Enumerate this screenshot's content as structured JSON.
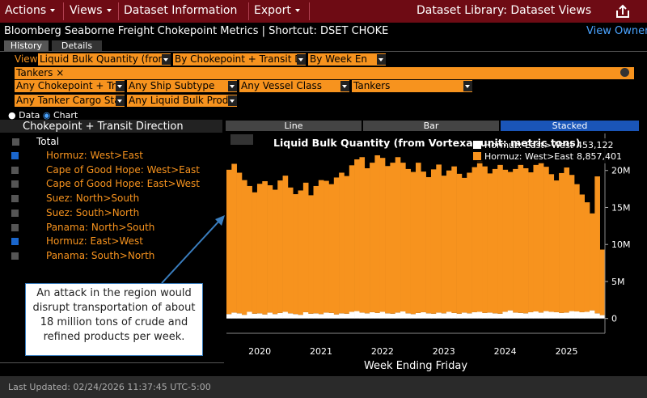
{
  "menu_bar": {
    "items": [
      "Actions",
      "Views",
      "Dataset Information",
      "Export"
    ],
    "right": "Dataset Library: Dataset Views"
  },
  "header": {
    "title": "Bloomberg Seaborne Freight Chokepoint Metrics | Shortcut: DSET CHOKE",
    "link": "View Owner"
  },
  "tabs": [
    "History",
    "Details"
  ],
  "filters": {
    "view_label": "View",
    "view_fields": [
      "Liquid Bulk Quantity (from",
      "By Chokepoint + Transit Di",
      "By Week En"
    ],
    "tag": "Tankers",
    "row2": [
      "Any Chokepoint + Tra",
      "Any Ship Subtype",
      "Any Vessel Class",
      "Tankers"
    ],
    "row3": [
      "Any Tanker Cargo Sta",
      "Any Liquid Bulk Produ"
    ]
  },
  "mode": [
    "Data",
    "Chart"
  ],
  "tree": {
    "header": "Chokepoint + Transit Direction",
    "root": "Total",
    "items": [
      {
        "label": "Hormuz: West>East",
        "checked": true
      },
      {
        "label": "Cape of Good Hope: West>East",
        "checked": false
      },
      {
        "label": "Cape of Good Hope: East>West",
        "checked": false
      },
      {
        "label": "Suez: North>South",
        "checked": false
      },
      {
        "label": "Suez: South>North",
        "checked": false
      },
      {
        "label": "Panama: North>South",
        "checked": false
      },
      {
        "label": "Hormuz: East>West",
        "checked": true
      },
      {
        "label": "Panama: South>North",
        "checked": false
      }
    ]
  },
  "annotation": [
    "An attack in the region would",
    "disrupt transportation of about",
    "18 million tons of crude and",
    "refined products per week."
  ],
  "chart_tabs": [
    "Line",
    "Bar",
    "Stacked"
  ],
  "chart_data": {
    "type": "bar",
    "stacked": true,
    "title": "Liquid Bulk Quantity (from Vortexa, unit: metric tons)",
    "x_label": "Week Ending Friday",
    "categories": [
      null,
      null,
      null,
      null,
      null,
      null,
      "2020",
      null,
      null,
      null,
      null,
      null,
      null,
      null,
      null,
      null,
      null,
      null,
      "2021",
      null,
      null,
      null,
      null,
      null,
      null,
      null,
      null,
      null,
      null,
      null,
      "2022",
      null,
      null,
      null,
      null,
      null,
      null,
      null,
      null,
      null,
      null,
      null,
      "2023",
      null,
      null,
      null,
      null,
      null,
      null,
      null,
      null,
      null,
      null,
      null,
      "2024",
      null,
      null,
      null,
      null,
      null,
      null,
      null,
      null,
      null,
      null,
      null,
      "2025",
      null,
      null,
      null,
      null,
      null,
      null,
      null
    ],
    "series": [
      {
        "name": "Hormuz: East>West",
        "color": "#ffffff",
        "legend_value": "453,122",
        "values": [
          600000,
          800000,
          700000,
          500000,
          900000,
          650000,
          700000,
          550000,
          800000,
          600000,
          750000,
          900000,
          700000,
          600000,
          500000,
          850000,
          650000,
          700000,
          600000,
          800000,
          750000,
          550000,
          700000,
          650000,
          900000,
          1000000,
          800000,
          700000,
          850000,
          750000,
          900000,
          700000,
          650000,
          800000,
          950000,
          700000,
          600000,
          750000,
          850000,
          700000,
          650000,
          800000,
          700000,
          900000,
          750000,
          650000,
          800000,
          700000,
          850000,
          900000,
          750000,
          800000,
          700000,
          650000,
          900000,
          1100000,
          800000,
          750000,
          700000,
          850000,
          950000,
          800000,
          1000000,
          900000,
          850000,
          750000,
          800000,
          1000000,
          950000,
          850000,
          900000,
          1100000,
          700000,
          453122
        ]
      },
      {
        "name": "Hormuz: West>East",
        "color": "#f7931e",
        "legend_value": "8,857,401",
        "values": [
          19500000,
          20100000,
          19000000,
          18200000,
          17000000,
          16400000,
          17500000,
          18000000,
          17200000,
          16800000,
          17900000,
          18400000,
          17000000,
          16200000,
          16800000,
          17500000,
          16000000,
          17200000,
          18100000,
          17800000,
          17400000,
          18500000,
          19000000,
          18600000,
          19800000,
          20500000,
          21000000,
          19600000,
          20200000,
          21300000,
          20800000,
          19900000,
          20400000,
          21000000,
          20100000,
          19500000,
          19200000,
          20300000,
          19000000,
          18400000,
          19500000,
          20000000,
          18600000,
          19100000,
          19800000,
          18900000,
          18200000,
          19000000,
          19600000,
          20400000,
          19800000,
          18800000,
          19500000,
          20100000,
          19200000,
          18700000,
          19400000,
          20000000,
          19600000,
          18900000,
          19800000,
          20300000,
          19500000,
          18600000,
          17800000,
          18900000,
          19600000,
          18400000,
          17200000,
          15900000,
          14800000,
          13100000,
          18500000,
          8857401
        ]
      }
    ],
    "ylim": [
      -2000000,
      25000000
    ],
    "yticks": [
      0,
      {
        "value": 5000000,
        "label": "5M"
      },
      {
        "value": 10000000,
        "label": "10M"
      },
      {
        "value": 15000000,
        "label": "15M"
      },
      {
        "value": 20000000,
        "label": "20M"
      }
    ],
    "y_axis_side": "right"
  },
  "footer": "Last Updated: 02/24/2026 11:37:45 UTC-5:00"
}
